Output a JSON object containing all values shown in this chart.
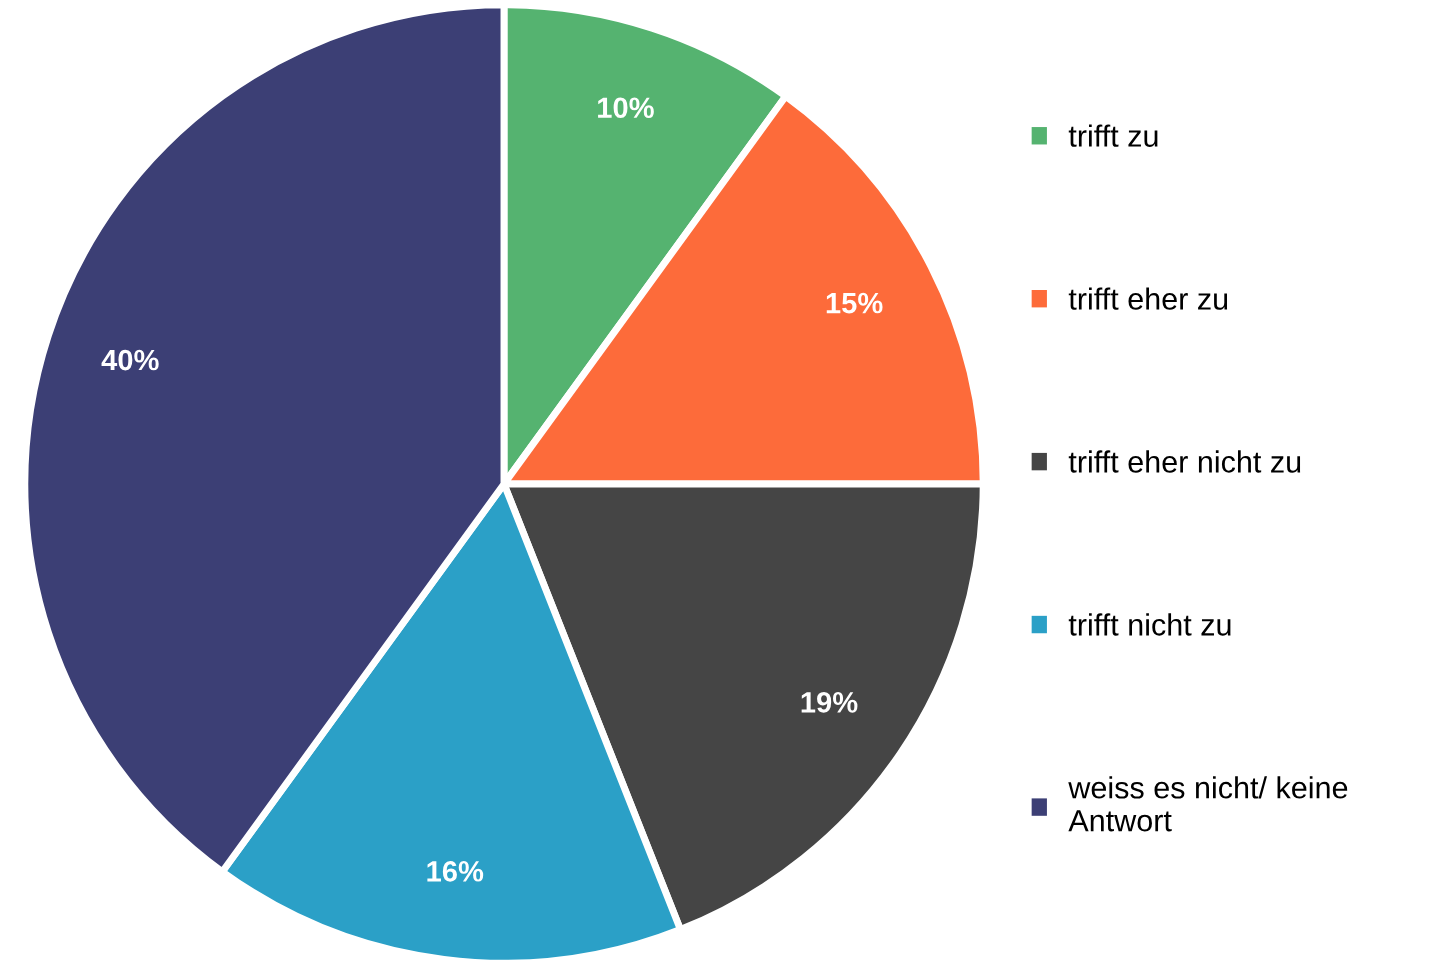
{
  "chart_data": {
    "type": "pie",
    "categories": [
      "trifft zu",
      "trifft eher zu",
      "trifft eher nicht zu",
      "trifft nicht zu",
      "weiss es nicht/ keine\nAntwort"
    ],
    "values": [
      10,
      15,
      19,
      16,
      40
    ],
    "colors": [
      "#55b370",
      "#fd6b3a",
      "#454545",
      "#2ba0c7",
      "#3c3f75"
    ],
    "value_labels": [
      "10%",
      "15%",
      "19%",
      "16%",
      "40%"
    ],
    "legend": "right"
  }
}
